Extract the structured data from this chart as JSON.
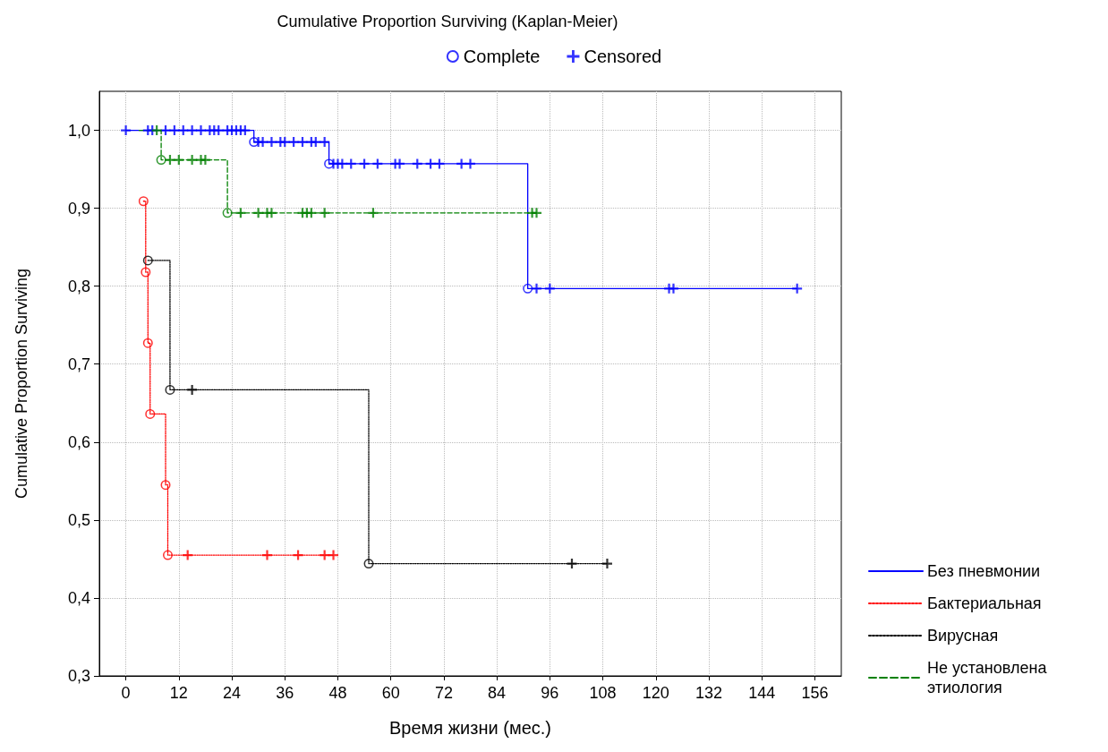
{
  "chart_data": {
    "type": "step",
    "title": "Cumulative Proportion Surviving (Kaplan-Meier)",
    "xlabel": "Время жизни (мес.)",
    "ylabel": "Cumulative Proportion Surviving",
    "xlim": [
      -6,
      162
    ],
    "xticks": [
      0,
      12,
      24,
      36,
      48,
      60,
      72,
      84,
      96,
      108,
      120,
      132,
      144,
      156
    ],
    "ylim": [
      0.3,
      1.05
    ],
    "yticks": [
      {
        "value": 0.3,
        "label": "0,3"
      },
      {
        "value": 0.4,
        "label": "0,4"
      },
      {
        "value": 0.5,
        "label": "0,5"
      },
      {
        "value": 0.6,
        "label": "0,6"
      },
      {
        "value": 0.7,
        "label": "0,7"
      },
      {
        "value": 0.8,
        "label": "0,8"
      },
      {
        "value": 0.9,
        "label": "0,9"
      },
      {
        "value": 1.0,
        "label": "1,0"
      }
    ],
    "grid": true,
    "legend": "right",
    "series": [
      {
        "name": "Без пневмонии",
        "type": "step",
        "color": "#0000ff",
        "line_style": "solid",
        "marker": "none",
        "x": [
          0,
          29,
          46,
          91,
          152
        ],
        "values": [
          1.0,
          0.985,
          0.957,
          0.797,
          0.797
        ]
      },
      {
        "name": "Бактериальная",
        "type": "step",
        "color": "#ff0000",
        "line_style": "dotted",
        "marker": "none",
        "x": [
          4,
          4.5,
          5,
          5.5,
          9,
          9.5,
          47
        ],
        "values": [
          0.909,
          0.818,
          0.727,
          0.636,
          0.545,
          0.455,
          0.455
        ]
      },
      {
        "name": "Вирусная",
        "type": "step",
        "color": "#000000",
        "line_style": "dotted",
        "marker": "none",
        "x": [
          5,
          10,
          55,
          109
        ],
        "values": [
          0.833,
          0.667,
          0.444,
          0.444
        ]
      },
      {
        "name": "Не установлена этиология",
        "type": "step",
        "color": "#008000",
        "line_style": "dashed",
        "marker": "none",
        "x": [
          3,
          8,
          23,
          93
        ],
        "values": [
          1.0,
          0.962,
          0.894,
          0.894
        ]
      },
      {
        "name": "Complete",
        "type": "scatter",
        "color": "#0000ff",
        "marker": "circle",
        "x": [
          29,
          46,
          91
        ],
        "values": [
          0.985,
          0.957,
          0.797
        ]
      },
      {
        "name": "Censored",
        "type": "scatter",
        "color": "#0000ff",
        "marker": "cross",
        "x": [
          0,
          5,
          6,
          7,
          9,
          11,
          13,
          15,
          17,
          19,
          20,
          21,
          23,
          24,
          25,
          26,
          27,
          30,
          31,
          33,
          35,
          36,
          38,
          40,
          42,
          43,
          45,
          47,
          48,
          49,
          51,
          54,
          57,
          61,
          62,
          66,
          69,
          71,
          76,
          78,
          93,
          96,
          123,
          124,
          152
        ],
        "values": [
          1.0,
          1.0,
          1.0,
          null,
          1.0,
          1.0,
          1.0,
          1.0,
          1.0,
          1.0,
          1.0,
          1.0,
          1.0,
          1.0,
          1.0,
          1.0,
          1.0,
          0.985,
          0.985,
          0.985,
          0.985,
          0.985,
          0.985,
          0.985,
          0.985,
          0.985,
          0.985,
          0.957,
          0.957,
          0.957,
          0.957,
          0.957,
          0.957,
          0.957,
          0.957,
          0.957,
          0.957,
          0.957,
          0.957,
          0.957,
          0.797,
          0.797,
          0.797,
          0.797,
          0.797
        ]
      },
      {
        "type": "scatter",
        "color": "#ff0000",
        "marker": "circle",
        "x": [
          4,
          4.5,
          5,
          5.5,
          9,
          9.5
        ],
        "values": [
          0.909,
          0.818,
          0.727,
          0.636,
          0.545,
          0.455
        ]
      },
      {
        "type": "scatter",
        "color": "#ff0000",
        "marker": "cross",
        "x": [
          14,
          32,
          39,
          45,
          47
        ],
        "values": [
          0.455,
          0.455,
          0.455,
          0.455,
          0.455
        ]
      },
      {
        "type": "scatter",
        "color": "#000000",
        "marker": "circle",
        "x": [
          5,
          10,
          55
        ],
        "values": [
          0.833,
          0.667,
          0.444
        ]
      },
      {
        "type": "scatter",
        "color": "#000000",
        "marker": "cross",
        "x": [
          15,
          101,
          109
        ],
        "values": [
          0.667,
          0.444,
          0.444
        ]
      },
      {
        "type": "scatter",
        "color": "#008000",
        "marker": "circle",
        "x": [
          8,
          23
        ],
        "values": [
          0.962,
          0.894
        ]
      },
      {
        "type": "scatter",
        "color": "#008000",
        "marker": "cross",
        "x": [
          7,
          10,
          12,
          15,
          17,
          18,
          26,
          30,
          32,
          33,
          40,
          41,
          42,
          45,
          56,
          92,
          93
        ],
        "values": [
          1.0,
          0.962,
          0.962,
          0.962,
          0.962,
          0.962,
          0.894,
          0.894,
          0.894,
          0.894,
          0.894,
          0.894,
          0.894,
          0.894,
          0.894,
          0.894,
          0.894
        ]
      }
    ]
  }
}
